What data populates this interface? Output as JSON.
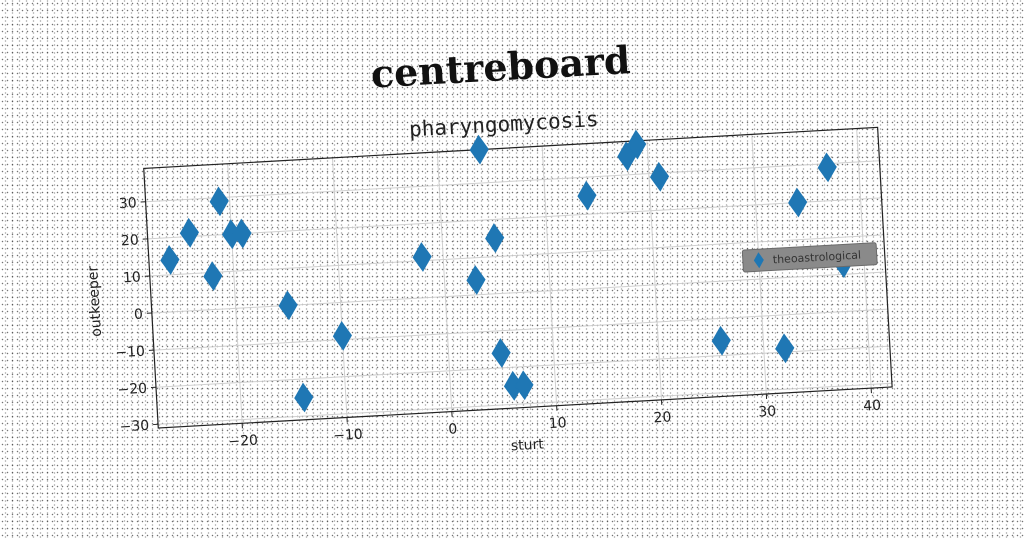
{
  "figure": {
    "title": "centreboard"
  },
  "chart_data": {
    "type": "scatter",
    "title": "pharyngomycosis",
    "xlabel": "sturt",
    "ylabel": "outkeeper",
    "xlim": [
      -28,
      42
    ],
    "ylim": [
      -31,
      39
    ],
    "xticks": [
      -20,
      -10,
      0,
      10,
      20,
      30,
      40
    ],
    "yticks": [
      -30,
      -20,
      -10,
      0,
      10,
      20,
      30
    ],
    "grid": true,
    "legend_position": "center-right",
    "marker": "diamond",
    "series": [
      {
        "name": "theoastrological",
        "color": "#1f77b4",
        "x": [
          -26,
          -24,
          -22,
          -21,
          -20,
          -19,
          -15,
          -14,
          -10,
          -2,
          3,
          4,
          5,
          5,
          6,
          7,
          14,
          18,
          19,
          21,
          26,
          32,
          34,
          37,
          38
        ],
        "y": [
          14,
          21,
          9,
          29,
          20,
          20,
          0,
          -25,
          -9,
          11,
          4,
          39,
          15,
          -16,
          -25,
          -25,
          25,
          35,
          38,
          29,
          -16,
          -19,
          20,
          29,
          3
        ]
      }
    ]
  }
}
